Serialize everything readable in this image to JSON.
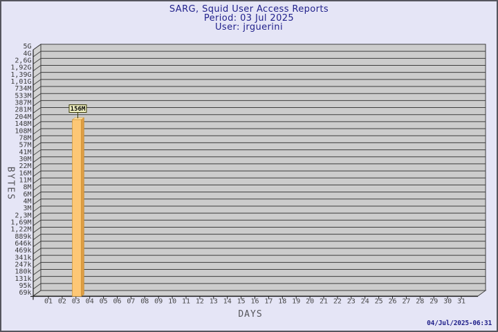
{
  "header": {
    "title": "SARG, Squid User Access Reports",
    "period": "Period: 03 Jul 2025",
    "user": "User: jrguerini"
  },
  "footer": {
    "generated": "04/Jul/2025-06:31"
  },
  "colors": {
    "page_background": "#E5E5F6",
    "panel": "#CCCCCC",
    "wall": "#D3D3D3",
    "floor": "#D0D0D0",
    "grid": "#3C3C3C",
    "axis": "#222222",
    "tick_text": "#3a3a3a",
    "xtick_text": "#474747",
    "bar_front": "#FDC775",
    "bar_side": "#DE9D44",
    "bar_top": "#FFDFA0",
    "bar_edge": "#C28A2A",
    "value_box_bg": "#F1F1C3",
    "value_box_border": "#3A3A06",
    "title_text": "#21218B"
  },
  "chart_data": {
    "type": "bar",
    "title": "SARG, Squid User Access Reports",
    "subtitle": "Period: 03 Jul 2025",
    "series_user": "jrguerini",
    "xlabel": "DAYS",
    "ylabel": "BYTES",
    "y_scale": "log",
    "legend_position": "none",
    "grid": "horizontal",
    "y_tick_labels": [
      "5G",
      "4G",
      "2,6G",
      "1,92G",
      "1,39G",
      "1,01G",
      "734M",
      "533M",
      "387M",
      "281M",
      "204M",
      "148M",
      "108M",
      "78M",
      "57M",
      "41M",
      "30M",
      "22M",
      "16M",
      "11M",
      "8M",
      "6M",
      "4M",
      "3M",
      "2,3M",
      "1,69M",
      "1,22M",
      "889k",
      "646k",
      "469k",
      "341k",
      "247k",
      "180k",
      "131k",
      "95k",
      "69k"
    ],
    "categories": [
      "01",
      "02",
      "03",
      "04",
      "05",
      "06",
      "07",
      "08",
      "09",
      "10",
      "11",
      "12",
      "13",
      "14",
      "15",
      "16",
      "17",
      "18",
      "19",
      "20",
      "21",
      "22",
      "23",
      "24",
      "25",
      "26",
      "27",
      "28",
      "29",
      "30",
      "31"
    ],
    "values": [
      0,
      0,
      156,
      0,
      0,
      0,
      0,
      0,
      0,
      0,
      0,
      0,
      0,
      0,
      0,
      0,
      0,
      0,
      0,
      0,
      0,
      0,
      0,
      0,
      0,
      0,
      0,
      0,
      0,
      0,
      0
    ],
    "value_unit": "MB",
    "bars": [
      {
        "category": "03",
        "label": "156M",
        "value_mb": 156
      }
    ]
  }
}
